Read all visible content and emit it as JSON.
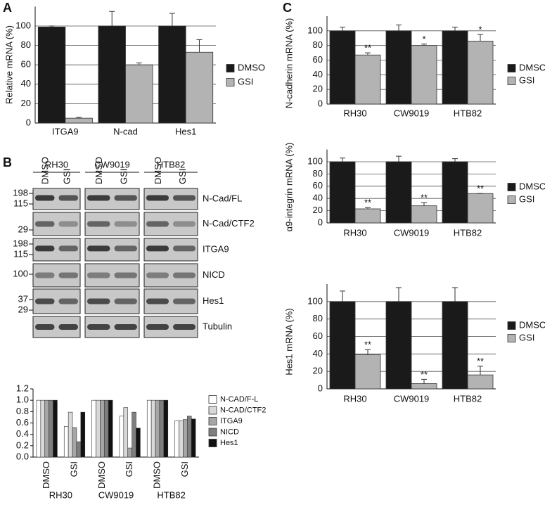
{
  "panels": [
    "A",
    "B",
    "C"
  ],
  "blot": {
    "cell_lines": [
      "RH30",
      "CW9019",
      "HTB82"
    ],
    "lanes": [
      "DMSO",
      "GSI",
      "DMSO",
      "GSI",
      "DMSO",
      "GSI"
    ],
    "rows": [
      {
        "label": "N-Cad/FL",
        "markers": [
          198,
          115
        ]
      },
      {
        "label": "N-Cad/CTF2",
        "markers": [
          29
        ]
      },
      {
        "label": "ITGA9",
        "markers": [
          198,
          115
        ]
      },
      {
        "label": "NICD",
        "markers": [
          100
        ]
      },
      {
        "label": "Hes1",
        "markers": [
          37,
          29
        ]
      },
      {
        "label": "Tubulin",
        "markers": []
      }
    ]
  },
  "chart_data": [
    {
      "type": "bar",
      "y_label": "Relative mRNA (%)",
      "categories": [
        "ITGA9",
        "N-cad",
        "Hes1"
      ],
      "series": [
        {
          "name": "DMSO",
          "color": "#1a1a1a",
          "values": [
            99,
            100,
            100
          ],
          "errors": [
            1,
            15,
            13
          ]
        },
        {
          "name": "GSI",
          "color": "#b3b3b3",
          "values": [
            5,
            60,
            73
          ],
          "errors": [
            1,
            2,
            13
          ]
        }
      ],
      "ylim": [
        0,
        120
      ],
      "yticks": [
        0,
        20,
        40,
        60,
        80,
        100
      ],
      "grid": true
    },
    {
      "type": "bar",
      "categories": [
        "DMSO",
        "GSI",
        "DMSO",
        "GSI",
        "DMSO",
        "GSI"
      ],
      "groups": [
        "RH30",
        "CW9019",
        "HTB82"
      ],
      "series": [
        {
          "name": "N-CAD/F-L",
          "color": "#ffffff",
          "values": [
            1.0,
            0.54,
            1.0,
            0.72,
            1.0,
            0.64
          ]
        },
        {
          "name": "N-CAD/CTF2",
          "color": "#d9d9d9",
          "values": [
            1.0,
            0.79,
            1.0,
            0.87,
            1.0,
            0.64
          ]
        },
        {
          "name": "ITGA9",
          "color": "#a6a6a6",
          "values": [
            1.0,
            0.52,
            1.0,
            0.16,
            1.0,
            0.66
          ]
        },
        {
          "name": "NICD",
          "color": "#7f7f7f",
          "values": [
            1.0,
            0.27,
            1.0,
            0.79,
            1.0,
            0.72
          ]
        },
        {
          "name": "Hes1",
          "color": "#111111",
          "values": [
            1.0,
            0.79,
            1.0,
            0.51,
            1.0,
            0.67
          ]
        }
      ],
      "ylim": [
        0,
        1.2
      ],
      "yticks": [
        {
          "value": 0,
          "label": "0.0"
        },
        0.2,
        0.4,
        0.6,
        0.8,
        {
          "value": 1,
          "label": "1.0"
        },
        1.2
      ],
      "grid": false
    },
    {
      "type": "bar",
      "y_label": "N-cadherin mRNA (%)",
      "categories": [
        "RH30",
        "CW9019",
        "HTB82"
      ],
      "series": [
        {
          "name": "DMSO",
          "color": "#1a1a1a",
          "values": [
            100,
            100,
            100
          ],
          "errors": [
            5,
            8,
            5
          ]
        },
        {
          "name": "GSI",
          "color": "#b3b3b3",
          "values": [
            67,
            80,
            86
          ],
          "errors": [
            3,
            2,
            9
          ],
          "annotations": [
            "**",
            "*",
            "*"
          ]
        }
      ],
      "ylim": [
        0,
        120
      ],
      "yticks": [
        0,
        20,
        40,
        60,
        80,
        100
      ],
      "grid": true
    },
    {
      "type": "bar",
      "y_label": "α9-integrin mRNA (%)",
      "categories": [
        "RH30",
        "CW9019",
        "HTB82"
      ],
      "series": [
        {
          "name": "DMSO",
          "color": "#1a1a1a",
          "values": [
            100,
            100,
            100
          ],
          "errors": [
            6,
            9,
            5
          ]
        },
        {
          "name": "GSI",
          "color": "#b3b3b3",
          "values": [
            23,
            28,
            48
          ],
          "errors": [
            2,
            5,
            0
          ],
          "annotations": [
            "**",
            "**",
            "**"
          ]
        }
      ],
      "ylim": [
        0,
        120
      ],
      "yticks": [
        0,
        20,
        40,
        60,
        80,
        100
      ],
      "grid": true
    },
    {
      "type": "bar",
      "y_label": "Hes1 mRNA (%)",
      "categories": [
        "RH30",
        "CW9019",
        "HTB82"
      ],
      "series": [
        {
          "name": "DMSO",
          "color": "#1a1a1a",
          "values": [
            100,
            100,
            100
          ],
          "errors": [
            12,
            16,
            16
          ]
        },
        {
          "name": "GSI",
          "color": "#b3b3b3",
          "values": [
            39,
            6,
            16
          ],
          "errors": [
            6,
            5,
            10
          ],
          "annotations": [
            "**",
            "**",
            "**"
          ]
        }
      ],
      "ylim": [
        0,
        120
      ],
      "yticks": [
        0,
        20,
        40,
        60,
        80,
        100
      ],
      "grid": true
    }
  ]
}
